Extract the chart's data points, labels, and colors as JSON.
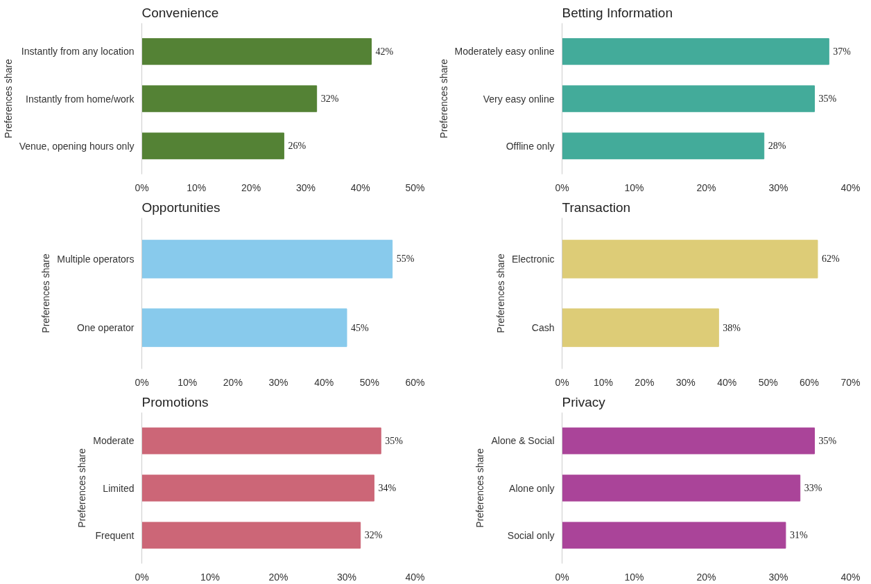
{
  "chart_data": [
    {
      "type": "bar",
      "orientation": "horizontal",
      "title": "Convenience",
      "ylabel": "Preferences share",
      "categories": [
        "Instantly from any location",
        "Instantly from home/work",
        "Venue, opening hours only"
      ],
      "values": [
        42,
        32,
        26
      ],
      "value_labels": [
        "42%",
        "32%",
        "26%"
      ],
      "color": "#548235",
      "xlim": [
        0,
        50
      ],
      "xticks": [
        {
          "value": 0,
          "label": "0%"
        },
        {
          "value": 10,
          "label": "10%"
        },
        {
          "value": 20,
          "label": "20%"
        },
        {
          "value": 30,
          "label": "30%"
        },
        {
          "value": 40,
          "label": "40%"
        },
        {
          "value": 50,
          "label": "50%"
        }
      ]
    },
    {
      "type": "bar",
      "orientation": "horizontal",
      "title": "Betting Information",
      "ylabel": "Preferences share",
      "categories": [
        "Moderately easy online",
        "Very easy online",
        "Offline only"
      ],
      "values": [
        37,
        35,
        28
      ],
      "value_labels": [
        "37%",
        "35%",
        "28%"
      ],
      "color": "#43ab9a",
      "xlim": [
        0,
        40
      ],
      "xticks": [
        {
          "value": 0,
          "label": "0%"
        },
        {
          "value": 10,
          "label": "10%"
        },
        {
          "value": 20,
          "label": "20%"
        },
        {
          "value": 30,
          "label": "30%"
        },
        {
          "value": 40,
          "label": "40%"
        }
      ]
    },
    {
      "type": "bar",
      "orientation": "horizontal",
      "title": "Opportunities",
      "ylabel": "Preferences share",
      "categories": [
        "Multiple operators",
        "One operator"
      ],
      "values": [
        55,
        45
      ],
      "value_labels": [
        "55%",
        "45%"
      ],
      "color": "#88caec",
      "xlim": [
        0,
        60
      ],
      "xticks": [
        {
          "value": 0,
          "label": "0%"
        },
        {
          "value": 10,
          "label": "10%"
        },
        {
          "value": 20,
          "label": "20%"
        },
        {
          "value": 30,
          "label": "30%"
        },
        {
          "value": 40,
          "label": "40%"
        },
        {
          "value": 50,
          "label": "50%"
        },
        {
          "value": 60,
          "label": "60%"
        }
      ]
    },
    {
      "type": "bar",
      "orientation": "horizontal",
      "title": "Transaction",
      "ylabel": "Preferences share",
      "categories": [
        "Electronic",
        "Cash"
      ],
      "values": [
        62,
        38
      ],
      "value_labels": [
        "62%",
        "38%"
      ],
      "color": "#ddcc77",
      "xlim": [
        0,
        70
      ],
      "xticks": [
        {
          "value": 0,
          "label": "0%"
        },
        {
          "value": 10,
          "label": "10%"
        },
        {
          "value": 20,
          "label": "20%"
        },
        {
          "value": 30,
          "label": "30%"
        },
        {
          "value": 40,
          "label": "40%"
        },
        {
          "value": 50,
          "label": "50%"
        },
        {
          "value": 60,
          "label": "60%"
        },
        {
          "value": 70,
          "label": "70%"
        }
      ]
    },
    {
      "type": "bar",
      "orientation": "horizontal",
      "title": "Promotions",
      "ylabel": "Preferences share",
      "categories": [
        "Moderate",
        "Limited",
        "Frequent"
      ],
      "values": [
        35,
        34,
        32
      ],
      "value_labels": [
        "35%",
        "34%",
        "32%"
      ],
      "color": "#cc6677",
      "xlim": [
        0,
        40
      ],
      "xticks": [
        {
          "value": 0,
          "label": "0%"
        },
        {
          "value": 10,
          "label": "10%"
        },
        {
          "value": 20,
          "label": "20%"
        },
        {
          "value": 30,
          "label": "30%"
        },
        {
          "value": 40,
          "label": "40%"
        }
      ]
    },
    {
      "type": "bar",
      "orientation": "horizontal",
      "title": "Privacy",
      "ylabel": "Preferences share",
      "categories": [
        "Alone & Social",
        "Alone only",
        "Social only"
      ],
      "values": [
        35,
        33,
        31
      ],
      "value_labels": [
        "35%",
        "33%",
        "31%"
      ],
      "color": "#aa4499",
      "xlim": [
        0,
        40
      ],
      "xticks": [
        {
          "value": 0,
          "label": "0%"
        },
        {
          "value": 10,
          "label": "10%"
        },
        {
          "value": 20,
          "label": "20%"
        },
        {
          "value": 30,
          "label": "30%"
        },
        {
          "value": 40,
          "label": "40%"
        }
      ]
    }
  ]
}
